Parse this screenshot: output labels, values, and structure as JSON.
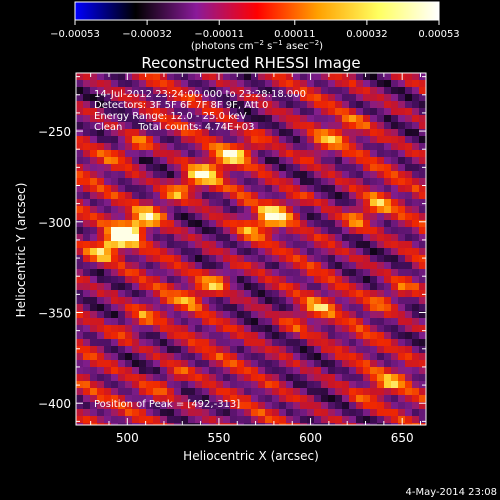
{
  "chart_data": {
    "type": "heatmap",
    "title": "Reconstructed RHESSI Image",
    "xlabel": "Heliocentric X (arcsec)",
    "ylabel": "Heliocentric Y (arcsec)",
    "xlim": [
      472,
      663
    ],
    "ylim": [
      -412,
      -218
    ],
    "xticks": [
      500,
      550,
      600,
      650
    ],
    "xtick_labels": [
      "500",
      "550",
      "600",
      "650"
    ],
    "yticks": [
      -250,
      -300,
      -350,
      -400
    ],
    "ytick_labels": [
      "−250",
      "−300",
      "−350",
      "−400"
    ],
    "colorbar": {
      "range": [
        -0.00053,
        0.00053
      ],
      "ticks": [
        -0.00053,
        -0.00032,
        -0.00011,
        0.00011,
        0.00032,
        0.00053
      ],
      "tick_labels": [
        "−0.00053",
        "−0.00032",
        "−0.00011",
        "0.00011",
        "0.00032",
        "0.00053"
      ],
      "unit_label": {
        "prefix": "(photons cm",
        "exp1": "−2",
        "mid1": " s",
        "exp2": "−1",
        "mid2": " asec",
        "exp3": "−2",
        "suffix": ")"
      },
      "colors": [
        "#0000ff",
        "#000000",
        "#8a1a9a",
        "#ff0000",
        "#ffa000",
        "#ffff60",
        "#ffffff"
      ]
    },
    "annotations": [
      "14-Jul-2012 23:24:00.000 to 23:28:18.000",
      "Detectors: 3F 5F 6F 7F 8F 9F, Att 0",
      "Energy Range: 12.0 - 25.0 keV",
      "Clean     Total counts: 4.74E+03",
      "Position of Peak = [492,-313]"
    ],
    "peak": {
      "x": 492,
      "y": -313
    },
    "pattern": {
      "description_free": true,
      "ridges_direction": "diagonal up-right",
      "bright_spots": [
        {
          "x": 492,
          "y": -312,
          "level": 1.0
        },
        {
          "x": 507,
          "y": -300,
          "level": 0.8
        },
        {
          "x": 535,
          "y": -278,
          "level": 0.85
        },
        {
          "x": 578,
          "y": -298,
          "level": 0.9
        },
        {
          "x": 560,
          "y": -262,
          "level": 0.7
        },
        {
          "x": 610,
          "y": -255,
          "level": 0.6
        },
        {
          "x": 630,
          "y": -295,
          "level": 0.65
        },
        {
          "x": 645,
          "y": -340,
          "level": 0.55
        },
        {
          "x": 600,
          "y": -350,
          "level": 0.6
        },
        {
          "x": 545,
          "y": -335,
          "level": 0.65
        },
        {
          "x": 505,
          "y": -355,
          "level": 0.5
        },
        {
          "x": 500,
          "y": -260,
          "level": 0.55
        },
        {
          "x": 520,
          "y": -390,
          "level": 0.45
        },
        {
          "x": 640,
          "y": -390,
          "level": 0.5
        }
      ]
    }
  },
  "footer": {
    "timestamp": "4-May-2014 23:08"
  }
}
